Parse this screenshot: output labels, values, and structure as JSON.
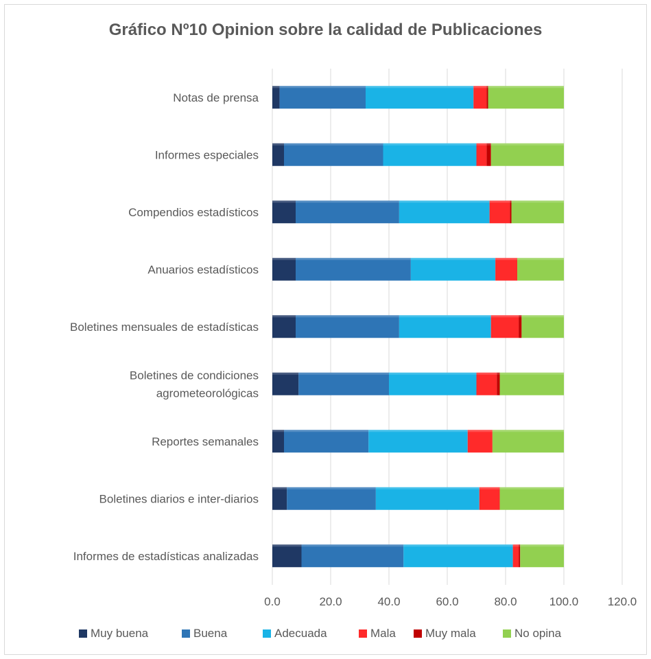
{
  "chart_data": {
    "type": "bar",
    "orientation": "horizontal",
    "stacked": true,
    "title": "Gráfico Nº10 Opinion sobre la calidad de Publicaciones",
    "categories": [
      "Notas de prensa",
      "Informes especiales",
      "Compendios estadísticos",
      "Anuarios estadísticos",
      "Boletines mensuales de estadísticas",
      "Boletines de condiciones agrometeorológicas",
      "Reportes semanales",
      "Boletines diarios e inter-diarios",
      "Informes de estadísticas analizadas"
    ],
    "category_lines": [
      [
        "Notas de prensa"
      ],
      [
        "Informes especiales"
      ],
      [
        "Compendios estadísticos"
      ],
      [
        "Anuarios estadísticos"
      ],
      [
        "Boletines mensuales de estadísticas"
      ],
      [
        "Boletines de condiciones",
        "agrometeorológicas"
      ],
      [
        "Reportes semanales"
      ],
      [
        "Boletines diarios e inter-diarios"
      ],
      [
        "Informes de estadísticas analizadas"
      ]
    ],
    "series": [
      {
        "name": "Muy buena",
        "color": "#1f3864",
        "values": [
          2.5,
          4.0,
          8.0,
          8.0,
          8.0,
          9.0,
          4.0,
          5.0,
          10.0
        ]
      },
      {
        "name": "Buena",
        "color": "#2e75b6",
        "values": [
          29.5,
          34.0,
          35.5,
          39.5,
          35.5,
          31.0,
          29.0,
          30.5,
          35.0
        ]
      },
      {
        "name": "Adecuada",
        "color": "#1ab3e6",
        "values": [
          37.0,
          32.0,
          31.0,
          29.0,
          31.5,
          30.0,
          34.0,
          35.5,
          37.5
        ]
      },
      {
        "name": "Mala",
        "color": "#ff2a2a",
        "values": [
          4.5,
          3.5,
          7.0,
          7.5,
          9.5,
          7.0,
          8.5,
          7.0,
          2.0
        ]
      },
      {
        "name": "Muy mala",
        "color": "#c00000",
        "values": [
          0.5,
          1.5,
          0.5,
          0.0,
          1.0,
          1.0,
          0.0,
          0.0,
          0.5
        ]
      },
      {
        "name": "No opina",
        "color": "#92d050",
        "values": [
          26.0,
          25.0,
          18.0,
          16.0,
          14.5,
          22.0,
          24.5,
          22.0,
          15.0
        ]
      }
    ],
    "xlim": [
      0,
      120
    ],
    "xticks": [
      "0.0",
      "20.0",
      "40.0",
      "60.0",
      "80.0",
      "100.0",
      "120.0"
    ],
    "grid": true,
    "legend_position": "bottom"
  }
}
